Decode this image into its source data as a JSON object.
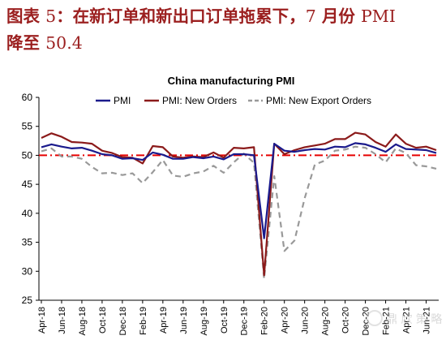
{
  "caption": {
    "label": "图表 ",
    "number": "5",
    "text1": "：在新订单和新出口订单拖累下，",
    "month": "7",
    "text2": " 月份 ",
    "pmi": "PMI",
    "text3": "降至 ",
    "value": "50.4"
  },
  "watermark": "鼎 欣 策 略",
  "chart_data": {
    "type": "line",
    "title": "China manufacturing PMI",
    "ylim": [
      25,
      60
    ],
    "yticks": [
      25,
      30,
      35,
      40,
      45,
      50,
      55,
      60
    ],
    "xtick_labels": [
      "Apr-18",
      "Jun-18",
      "Aug-18",
      "Oct-18",
      "Dec-18",
      "Feb-19",
      "Apr-19",
      "Jun-19",
      "Aug-19",
      "Oct-19",
      "Dec-19",
      "Feb-20",
      "Apr-20",
      "Jun-20",
      "Aug-20",
      "Oct-20",
      "Dec-20",
      "Feb-21",
      "Apr-21",
      "Jun-21"
    ],
    "x": [
      "Apr-18",
      "May-18",
      "Jun-18",
      "Jul-18",
      "Aug-18",
      "Sep-18",
      "Oct-18",
      "Nov-18",
      "Dec-18",
      "Jan-19",
      "Feb-19",
      "Mar-19",
      "Apr-19",
      "May-19",
      "Jun-19",
      "Jul-19",
      "Aug-19",
      "Sep-19",
      "Oct-19",
      "Nov-19",
      "Dec-19",
      "Jan-20",
      "Feb-20",
      "Mar-20",
      "Apr-20",
      "May-20",
      "Jun-20",
      "Jul-20",
      "Aug-20",
      "Sep-20",
      "Oct-20",
      "Nov-20",
      "Dec-20",
      "Jan-21",
      "Feb-21",
      "Mar-21",
      "Apr-21",
      "May-21",
      "Jun-21",
      "Jul-21"
    ],
    "reference_line": 50,
    "series": [
      {
        "name": "PMI",
        "color": "#1a1a8c",
        "dash": "solid",
        "values": [
          51.4,
          51.9,
          51.5,
          51.2,
          51.3,
          50.8,
          50.2,
          50.0,
          49.4,
          49.5,
          49.2,
          50.5,
          50.1,
          49.4,
          49.4,
          49.7,
          49.5,
          49.8,
          49.3,
          50.2,
          50.2,
          50.0,
          35.7,
          52.0,
          50.8,
          50.6,
          50.9,
          51.1,
          51.0,
          51.5,
          51.4,
          52.1,
          51.9,
          51.3,
          50.6,
          51.9,
          51.1,
          51.0,
          50.9,
          50.4
        ]
      },
      {
        "name": "PMI: New Orders",
        "color": "#8b1a1a",
        "dash": "solid",
        "values": [
          53.0,
          53.8,
          53.2,
          52.3,
          52.2,
          52.0,
          50.8,
          50.4,
          49.7,
          49.6,
          48.6,
          51.6,
          51.4,
          49.8,
          49.6,
          49.8,
          49.7,
          50.5,
          49.6,
          51.3,
          51.2,
          51.4,
          29.3,
          52.0,
          50.2,
          50.9,
          51.4,
          51.7,
          52.0,
          52.8,
          52.8,
          53.9,
          53.6,
          52.3,
          51.5,
          53.6,
          52.0,
          51.3,
          51.5,
          50.9
        ]
      },
      {
        "name": "PMI: New Export Orders",
        "color": "#999999",
        "dash": "dashed",
        "values": [
          50.7,
          51.2,
          49.8,
          49.8,
          49.4,
          48.0,
          46.9,
          47.0,
          46.6,
          46.9,
          45.2,
          47.1,
          49.2,
          46.5,
          46.3,
          46.9,
          47.2,
          48.2,
          47.0,
          48.8,
          50.3,
          48.7,
          28.7,
          46.4,
          33.5,
          35.3,
          42.6,
          48.4,
          49.1,
          50.8,
          51.0,
          51.5,
          51.3,
          50.2,
          48.8,
          51.2,
          50.4,
          48.3,
          48.1,
          47.7
        ]
      }
    ]
  }
}
